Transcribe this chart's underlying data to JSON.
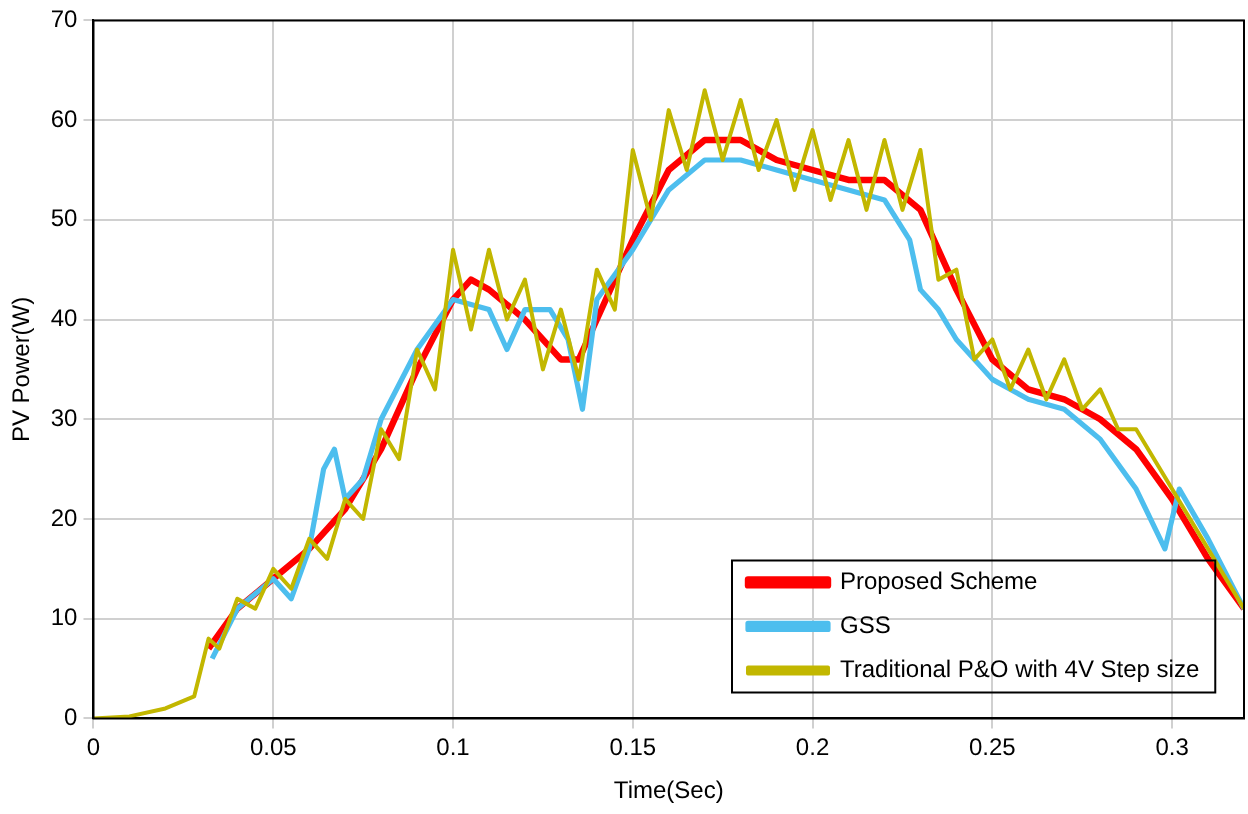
{
  "chart_data": {
    "type": "line",
    "xlabel": "Time(Sec)",
    "ylabel": "PV Power(W)",
    "xlim": [
      0,
      0.32
    ],
    "ylim": [
      0,
      70
    ],
    "xticks": [
      0,
      0.05,
      0.1,
      0.15,
      0.2,
      0.25,
      0.3
    ],
    "yticks": [
      0,
      10,
      20,
      30,
      40,
      50,
      60,
      70
    ],
    "grid": true,
    "legend": "bottom right",
    "marker": "none",
    "line_style": "solid",
    "series": [
      {
        "name": "Proposed Scheme",
        "color": "#ff0000",
        "x": [
          0.032,
          0.04,
          0.05,
          0.06,
          0.07,
          0.08,
          0.09,
          0.1,
          0.105,
          0.11,
          0.12,
          0.13,
          0.135,
          0.14,
          0.15,
          0.16,
          0.17,
          0.18,
          0.19,
          0.2,
          0.21,
          0.22,
          0.23,
          0.24,
          0.25,
          0.26,
          0.27,
          0.28,
          0.29,
          0.3,
          0.31,
          0.32
        ],
        "values": [
          7,
          11,
          14,
          17,
          21,
          27,
          35,
          42,
          44,
          43,
          40,
          36,
          36,
          40,
          48,
          55,
          58,
          58,
          56,
          55,
          54,
          54,
          51,
          43,
          36,
          33,
          32,
          30,
          27,
          22,
          16,
          11
        ]
      },
      {
        "name": "GSS",
        "color": "#4dbeee",
        "x": [
          0.033,
          0.04,
          0.05,
          0.055,
          0.06,
          0.064,
          0.067,
          0.07,
          0.075,
          0.08,
          0.09,
          0.1,
          0.11,
          0.115,
          0.12,
          0.127,
          0.132,
          0.136,
          0.14,
          0.15,
          0.16,
          0.17,
          0.18,
          0.19,
          0.2,
          0.21,
          0.22,
          0.227,
          0.23,
          0.235,
          0.24,
          0.25,
          0.26,
          0.27,
          0.28,
          0.29,
          0.298,
          0.302,
          0.31,
          0.32
        ],
        "values": [
          6,
          11,
          14,
          12,
          17,
          25,
          27,
          22,
          24,
          30,
          37,
          42,
          41,
          37,
          41,
          41,
          38,
          31,
          42,
          47,
          53,
          56,
          56,
          55,
          54,
          53,
          52,
          48,
          43,
          41,
          38,
          34,
          32,
          31,
          28,
          23,
          17,
          23,
          18,
          11
        ]
      },
      {
        "name": "Traditional P&O with 4V Step size",
        "color": "#c2b700",
        "x": [
          0,
          0.01,
          0.02,
          0.028,
          0.032,
          0.035,
          0.04,
          0.045,
          0.05,
          0.055,
          0.06,
          0.065,
          0.07,
          0.075,
          0.08,
          0.085,
          0.09,
          0.095,
          0.1,
          0.105,
          0.11,
          0.115,
          0.12,
          0.125,
          0.13,
          0.135,
          0.14,
          0.145,
          0.15,
          0.155,
          0.16,
          0.165,
          0.17,
          0.175,
          0.18,
          0.185,
          0.19,
          0.195,
          0.2,
          0.205,
          0.21,
          0.215,
          0.22,
          0.225,
          0.23,
          0.235,
          0.24,
          0.245,
          0.25,
          0.255,
          0.26,
          0.265,
          0.27,
          0.275,
          0.28,
          0.285,
          0.29,
          0.3,
          0.31,
          0.32
        ],
        "values": [
          0,
          0.2,
          1,
          2.2,
          8,
          7,
          12,
          11,
          15,
          13,
          18,
          16,
          22,
          20,
          29,
          26,
          37,
          33,
          47,
          39,
          47,
          40,
          44,
          35,
          41,
          34,
          45,
          41,
          57,
          50,
          61,
          55,
          63,
          56,
          62,
          55,
          60,
          53,
          59,
          52,
          58,
          51,
          58,
          51,
          57,
          44,
          45,
          36,
          38,
          33,
          37,
          32,
          36,
          31,
          33,
          29,
          29,
          23,
          17,
          11
        ]
      }
    ]
  }
}
